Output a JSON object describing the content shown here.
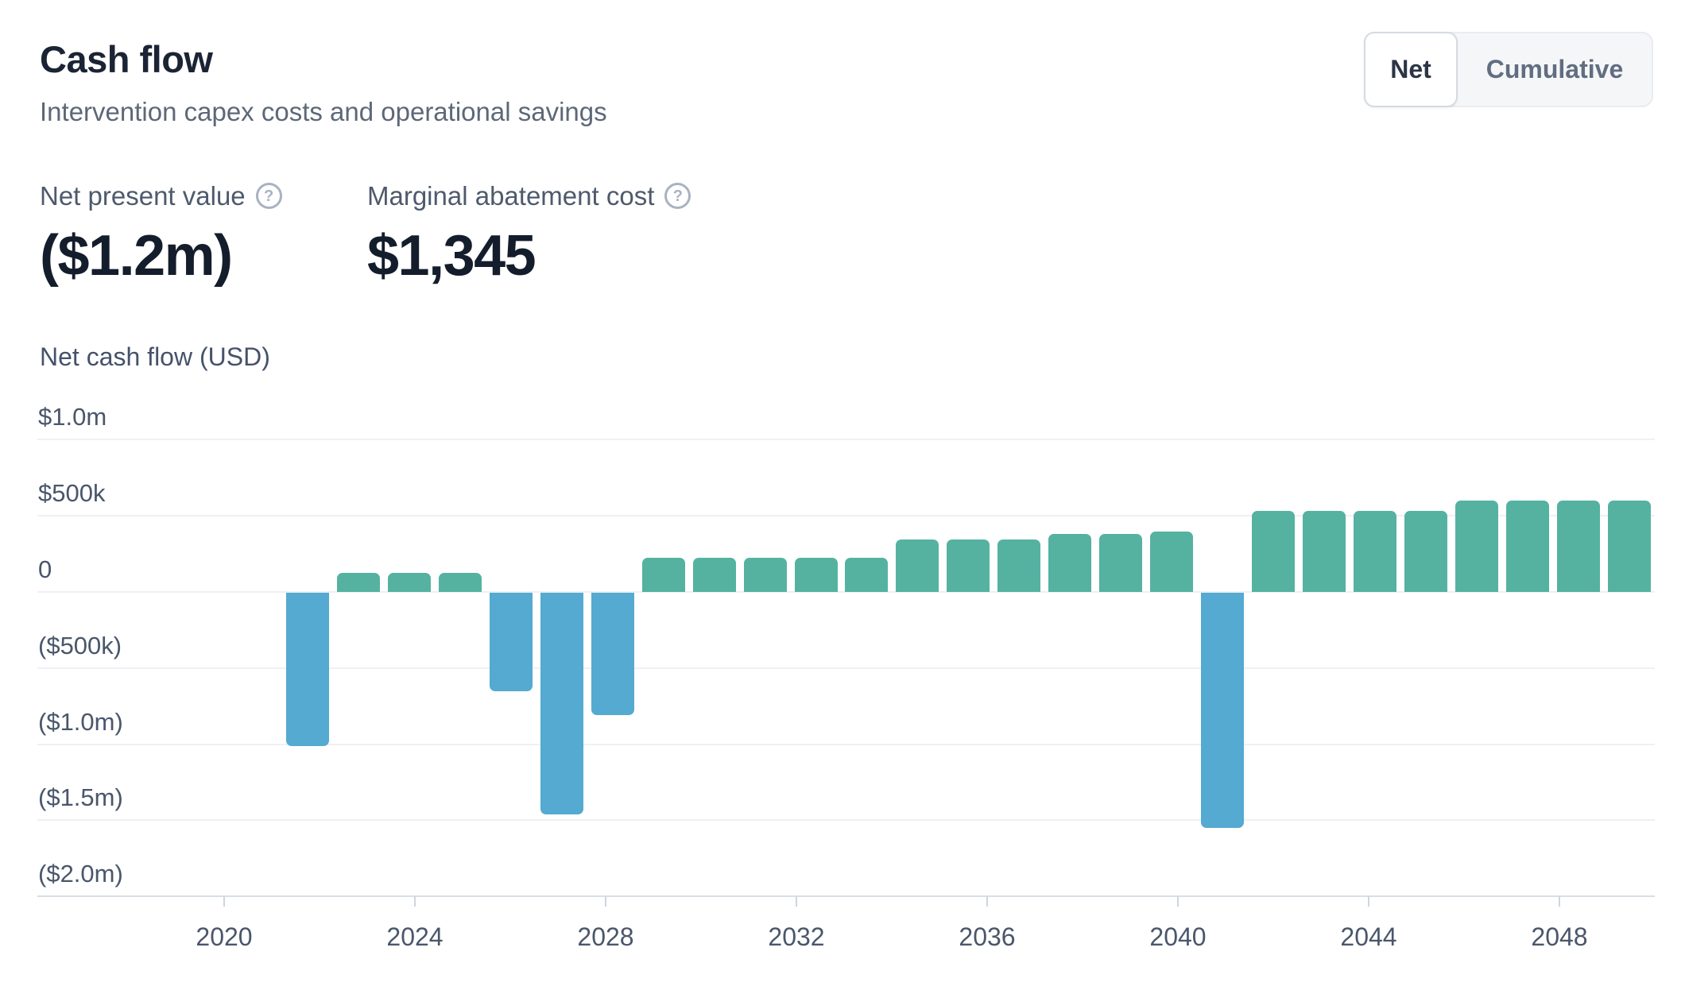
{
  "header": {
    "title": "Cash flow",
    "subtitle": "Intervention capex costs and operational savings"
  },
  "toggle": {
    "options": [
      {
        "label": "Net",
        "active": true
      },
      {
        "label": "Cumulative",
        "active": false
      }
    ]
  },
  "metrics": [
    {
      "label": "Net present value",
      "value": "($1.2m)",
      "help_icon": "question-mark-circle"
    },
    {
      "label": "Marginal abatement cost",
      "value": "$1,345",
      "help_icon": "question-mark-circle"
    }
  ],
  "chart_data": {
    "type": "bar",
    "title": "Cash flow",
    "subtitle": "Intervention capex costs and operational savings",
    "ylabel": "Net cash flow (USD)",
    "xlabel": "",
    "units": "USD_thousands",
    "grid": true,
    "legend": false,
    "ylim": [
      -2000,
      1000
    ],
    "categories": [
      2022,
      2023,
      2024,
      2025,
      2026,
      2027,
      2028,
      2029,
      2030,
      2031,
      2032,
      2033,
      2034,
      2035,
      2036,
      2037,
      2038,
      2039,
      2040,
      2041,
      2042,
      2043,
      2044,
      2045,
      2046,
      2047,
      2048
    ],
    "values": [
      -1010,
      125,
      125,
      125,
      -650,
      -1460,
      -810,
      225,
      225,
      225,
      225,
      225,
      345,
      345,
      345,
      380,
      380,
      395,
      -1550,
      530,
      530,
      530,
      530,
      600,
      600,
      600,
      600
    ],
    "yticks": [
      {
        "label": "$1.0m",
        "value": 1000
      },
      {
        "label": "$500k",
        "value": 500
      },
      {
        "label": "0",
        "value": 0
      },
      {
        "label": "($500k)",
        "value": -500
      },
      {
        "label": "($1.0m)",
        "value": -1000
      },
      {
        "label": "($1.5m)",
        "value": -1500
      },
      {
        "label": "($2.0m)",
        "value": -2000
      }
    ],
    "xticks": [
      2020,
      2024,
      2028,
      2032,
      2036,
      2040,
      2044,
      2048
    ],
    "positive_color": "#55b2a1",
    "negative_color": "#54aad0"
  }
}
